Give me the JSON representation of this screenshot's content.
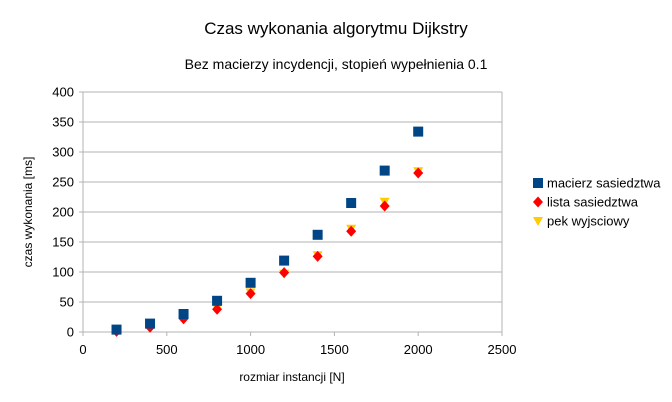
{
  "chart_data": {
    "type": "scatter",
    "title": "Czas wykonania algorytmu Dijkstry",
    "subtitle": "Bez macierzy incydencji, stopień wypełnienia 0.1",
    "xlabel": "rozmiar instancji [N]",
    "ylabel": "czas wykonania [ms]",
    "xlim": [
      0,
      2500
    ],
    "ylim": [
      0,
      400
    ],
    "xticks": [
      0,
      500,
      1000,
      1500,
      2000,
      2500
    ],
    "yticks": [
      0,
      50,
      100,
      150,
      200,
      250,
      300,
      350,
      400
    ],
    "grid": "horizontal",
    "legend_position": "right",
    "series": [
      {
        "name": "macierz sasiedztwa",
        "marker": "square",
        "color": "#004586",
        "x": [
          200,
          400,
          600,
          800,
          1000,
          1200,
          1400,
          1600,
          1800,
          2000
        ],
        "y": [
          4,
          14,
          30,
          52,
          82,
          119,
          162,
          215,
          269,
          334
        ]
      },
      {
        "name": "lista sasiedztwa",
        "marker": "diamond",
        "color": "#ff0000",
        "x": [
          200,
          400,
          600,
          800,
          1000,
          1200,
          1400,
          1600,
          1800,
          2000
        ],
        "y": [
          1,
          8,
          22,
          38,
          64,
          99,
          126,
          168,
          210,
          265
        ]
      },
      {
        "name": "pek wyjsciowy",
        "marker": "triangle-down",
        "color": "#ffcc00",
        "x": [
          200,
          400,
          600,
          800,
          1000,
          1200,
          1400,
          1600,
          1800,
          2000
        ],
        "y": [
          1,
          9,
          23,
          40,
          66,
          97,
          128,
          172,
          217,
          268
        ]
      }
    ]
  }
}
